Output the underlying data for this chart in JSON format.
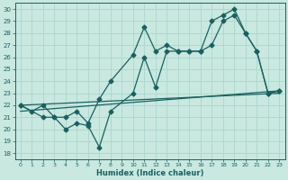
{
  "xlabel": "Humidex (Indice chaleur)",
  "bg_color": "#c8e8e0",
  "grid_color": "#b0d8d0",
  "line_color": "#1a6060",
  "xlim": [
    -0.5,
    23.5
  ],
  "ylim": [
    17.5,
    30.5
  ],
  "xticks": [
    0,
    1,
    2,
    3,
    4,
    5,
    6,
    7,
    8,
    9,
    10,
    11,
    12,
    13,
    14,
    15,
    16,
    17,
    18,
    19,
    20,
    21,
    22,
    23
  ],
  "yticks": [
    18,
    19,
    20,
    21,
    22,
    23,
    24,
    25,
    26,
    27,
    28,
    29,
    30
  ],
  "line_upper_x": [
    0,
    1,
    2,
    3,
    4,
    5,
    6,
    7,
    8,
    10,
    11,
    12,
    13,
    14,
    15,
    16,
    17,
    18,
    19,
    20,
    21,
    22,
    23
  ],
  "line_upper_y": [
    22.0,
    21.5,
    22.0,
    21.0,
    21.0,
    21.5,
    20.5,
    22.5,
    24.0,
    26.2,
    28.5,
    26.5,
    27.0,
    26.5,
    26.5,
    26.5,
    29.0,
    29.5,
    30.0,
    28.0,
    26.5,
    23.0,
    23.2
  ],
  "line_lower_x": [
    0,
    2,
    3,
    4,
    5,
    6,
    7,
    8,
    10,
    11,
    12,
    13,
    14,
    15,
    16,
    17,
    18,
    19,
    20,
    21,
    22,
    23
  ],
  "line_lower_y": [
    22.0,
    21.0,
    21.0,
    20.0,
    20.5,
    20.3,
    18.5,
    21.5,
    23.0,
    26.0,
    23.5,
    26.5,
    26.5,
    26.5,
    26.5,
    27.0,
    29.0,
    29.5,
    28.0,
    26.5,
    23.0,
    23.2
  ],
  "trend1_x": [
    0,
    23
  ],
  "trend1_y": [
    21.5,
    23.2
  ],
  "trend2_x": [
    0,
    23
  ],
  "trend2_y": [
    22.0,
    23.0
  ]
}
